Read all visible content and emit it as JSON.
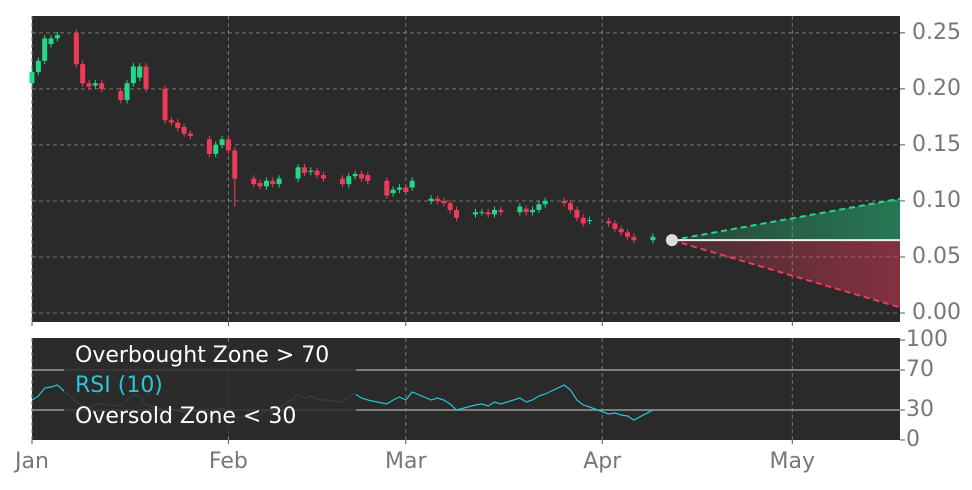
{
  "chart_data": [
    {
      "type": "candlestick",
      "x": [
        0,
        1,
        2,
        3,
        4,
        7,
        8,
        9,
        10,
        11,
        14,
        15,
        16,
        17,
        18,
        21,
        22,
        23,
        24,
        25,
        28,
        29,
        30,
        31,
        32,
        35,
        36,
        37,
        38,
        39,
        42,
        43,
        44,
        45,
        46,
        49,
        50,
        51,
        52,
        53,
        56,
        57,
        58,
        59,
        60,
        63,
        64,
        65,
        66,
        67,
        70,
        71,
        72,
        73,
        74,
        77,
        78,
        79,
        80,
        81,
        84,
        85,
        86,
        87,
        88,
        91,
        92,
        93,
        94,
        95,
        98
      ],
      "open": [
        0.205,
        0.215,
        0.225,
        0.24,
        0.245,
        0.25,
        0.222,
        0.205,
        0.203,
        0.205,
        0.198,
        0.19,
        0.205,
        0.21,
        0.22,
        0.2,
        0.172,
        0.17,
        0.166,
        0.16,
        0.155,
        0.142,
        0.15,
        0.155,
        0.145,
        0.12,
        0.116,
        0.113,
        0.118,
        0.115,
        0.12,
        0.13,
        0.126,
        0.127,
        0.123,
        0.12,
        0.115,
        0.122,
        0.124,
        0.123,
        0.118,
        0.107,
        0.11,
        0.112,
        0.112,
        0.1,
        0.102,
        0.1,
        0.098,
        0.092,
        0.088,
        0.09,
        0.09,
        0.088,
        0.092,
        0.09,
        0.093,
        0.09,
        0.092,
        0.097,
        0.1,
        0.098,
        0.092,
        0.085,
        0.082,
        0.082,
        0.08,
        0.075,
        0.072,
        0.068,
        0.065
      ],
      "high": [
        0.218,
        0.228,
        0.248,
        0.248,
        0.251,
        0.253,
        0.225,
        0.208,
        0.208,
        0.208,
        0.201,
        0.208,
        0.223,
        0.223,
        0.223,
        0.203,
        0.175,
        0.173,
        0.169,
        0.163,
        0.158,
        0.153,
        0.158,
        0.158,
        0.148,
        0.123,
        0.119,
        0.121,
        0.121,
        0.123,
        0.133,
        0.133,
        0.13,
        0.13,
        0.126,
        0.123,
        0.125,
        0.127,
        0.127,
        0.126,
        0.121,
        0.113,
        0.115,
        0.115,
        0.121,
        0.105,
        0.105,
        0.103,
        0.101,
        0.095,
        0.093,
        0.093,
        0.093,
        0.095,
        0.095,
        0.098,
        0.096,
        0.095,
        0.1,
        0.103,
        0.103,
        0.101,
        0.095,
        0.088,
        0.086,
        0.085,
        0.083,
        0.078,
        0.075,
        0.071,
        0.071
      ],
      "low": [
        0.202,
        0.212,
        0.222,
        0.237,
        0.242,
        0.219,
        0.202,
        0.199,
        0.2,
        0.197,
        0.187,
        0.187,
        0.202,
        0.207,
        0.197,
        0.169,
        0.167,
        0.162,
        0.157,
        0.155,
        0.139,
        0.139,
        0.147,
        0.142,
        0.095,
        0.112,
        0.11,
        0.11,
        0.112,
        0.112,
        0.117,
        0.122,
        0.123,
        0.12,
        0.117,
        0.112,
        0.112,
        0.119,
        0.117,
        0.115,
        0.102,
        0.104,
        0.107,
        0.105,
        0.109,
        0.097,
        0.097,
        0.095,
        0.089,
        0.082,
        0.085,
        0.087,
        0.085,
        0.085,
        0.087,
        0.087,
        0.087,
        0.087,
        0.089,
        0.094,
        0.095,
        0.089,
        0.082,
        0.077,
        0.079,
        0.077,
        0.072,
        0.069,
        0.065,
        0.062,
        0.062
      ],
      "close": [
        0.215,
        0.225,
        0.245,
        0.245,
        0.248,
        0.222,
        0.205,
        0.202,
        0.205,
        0.2,
        0.19,
        0.205,
        0.22,
        0.22,
        0.2,
        0.172,
        0.17,
        0.165,
        0.16,
        0.158,
        0.142,
        0.15,
        0.155,
        0.145,
        0.12,
        0.115,
        0.113,
        0.118,
        0.115,
        0.12,
        0.13,
        0.125,
        0.127,
        0.123,
        0.12,
        0.115,
        0.122,
        0.124,
        0.12,
        0.118,
        0.105,
        0.11,
        0.112,
        0.108,
        0.118,
        0.102,
        0.1,
        0.098,
        0.092,
        0.085,
        0.09,
        0.09,
        0.088,
        0.092,
        0.09,
        0.095,
        0.09,
        0.092,
        0.097,
        0.1,
        0.098,
        0.092,
        0.085,
        0.08,
        0.083,
        0.08,
        0.075,
        0.072,
        0.068,
        0.065,
        0.068
      ],
      "up_color": "#22d88a",
      "down_color": "#f03a5a",
      "forecast": {
        "x": [
          101,
          137
        ],
        "upper": [
          0.065,
          0.102
        ],
        "lower": [
          0.065,
          0.005
        ]
      },
      "xlim": [
        0,
        137
      ],
      "ylim": [
        -0.008,
        0.265
      ],
      "yticks": [
        {
          "value": 0,
          "label": "0.00"
        },
        0.05,
        {
          "value": 0.1,
          "label": "0.10"
        },
        0.15,
        {
          "value": 0.2,
          "label": "0.20"
        },
        0.25
      ],
      "grid": true
    },
    {
      "type": "line",
      "x": [
        0,
        1,
        2,
        3,
        4,
        7,
        8,
        9,
        10,
        11,
        14,
        15,
        16,
        17,
        18,
        21,
        22,
        23,
        24,
        25,
        28,
        29,
        30,
        31,
        32,
        35,
        36,
        37,
        38,
        39,
        42,
        43,
        44,
        45,
        46,
        49,
        50,
        51,
        52,
        53,
        56,
        57,
        58,
        59,
        60,
        63,
        64,
        65,
        66,
        67,
        70,
        71,
        72,
        73,
        74,
        77,
        78,
        79,
        80,
        81,
        84,
        85,
        86,
        87,
        88,
        91,
        92,
        93,
        94,
        95,
        98
      ],
      "series": [
        {
          "name": "RSI (10)",
          "color": "#29c5d8",
          "values": [
            40,
            44,
            52,
            53,
            55,
            38,
            34,
            33,
            35,
            36,
            34,
            40,
            45,
            44,
            35,
            30,
            31,
            29,
            28,
            30,
            26,
            30,
            32,
            28,
            22,
            24,
            25,
            30,
            28,
            32,
            45,
            42,
            44,
            41,
            40,
            38,
            44,
            46,
            42,
            40,
            36,
            40,
            43,
            40,
            48,
            40,
            42,
            40,
            36,
            30,
            35,
            36,
            34,
            38,
            36,
            42,
            38,
            40,
            44,
            46,
            55,
            50,
            40,
            35,
            33,
            26,
            27,
            25,
            24,
            20,
            30
          ]
        }
      ],
      "hlines": [
        {
          "value": 70,
          "label": "Overbought Zone > 70"
        },
        {
          "value": 30,
          "label": "Oversold Zone < 30"
        }
      ],
      "xlim": [
        0,
        137
      ],
      "ylim": [
        0,
        102
      ],
      "xticks": [
        {
          "value": 0,
          "label": "Jan"
        },
        {
          "value": 31,
          "label": "Feb"
        },
        {
          "value": 59,
          "label": "Mar"
        },
        {
          "value": 90,
          "label": "Apr"
        },
        {
          "value": 120,
          "label": "May"
        }
      ],
      "yticks": [
        0,
        30,
        70,
        100
      ]
    }
  ]
}
